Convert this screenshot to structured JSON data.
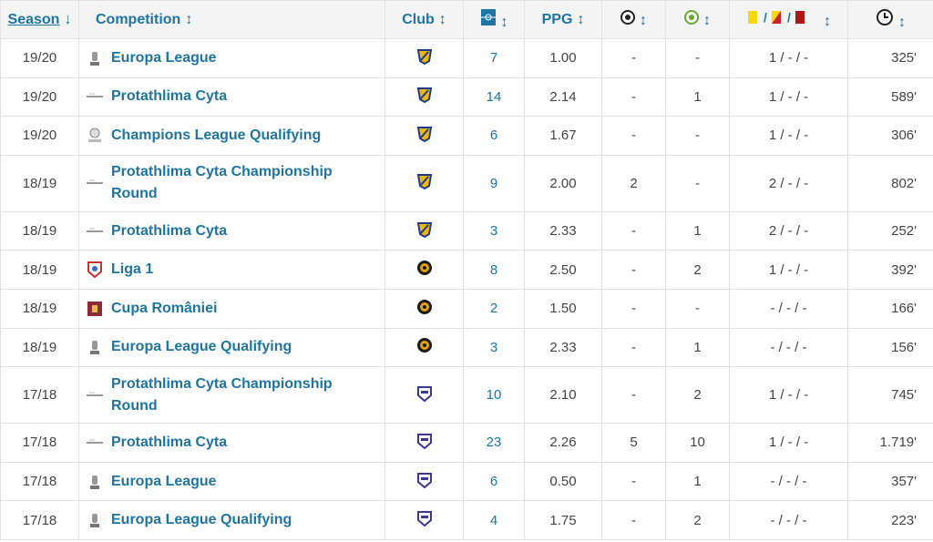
{
  "table": {
    "header": {
      "season": "Season",
      "competition": "Competition",
      "club": "Club",
      "ppg": "PPG"
    },
    "rows": [
      {
        "season": "19/20",
        "competition": "Europa League",
        "apps": "7",
        "ppg": "1.00",
        "goals": "-",
        "assists": "-",
        "cards": "1 / - / -",
        "minutes": "325'"
      },
      {
        "season": "19/20",
        "competition": "Protathlima Cyta",
        "apps": "14",
        "ppg": "2.14",
        "goals": "-",
        "assists": "1",
        "cards": "1 / - / -",
        "minutes": "589'"
      },
      {
        "season": "19/20",
        "competition": "Champions League Qualifying",
        "apps": "6",
        "ppg": "1.67",
        "goals": "-",
        "assists": "-",
        "cards": "1 / - / -",
        "minutes": "306'"
      },
      {
        "season": "18/19",
        "competition": "Protathlima Cyta Championship Round",
        "apps": "9",
        "ppg": "2.00",
        "goals": "2",
        "assists": "-",
        "cards": "2 / - / -",
        "minutes": "802'"
      },
      {
        "season": "18/19",
        "competition": "Protathlima Cyta",
        "apps": "3",
        "ppg": "2.33",
        "goals": "-",
        "assists": "1",
        "cards": "2 / - / -",
        "minutes": "252'"
      },
      {
        "season": "18/19",
        "competition": "Liga 1",
        "apps": "8",
        "ppg": "2.50",
        "goals": "-",
        "assists": "2",
        "cards": "1 / - / -",
        "minutes": "392'"
      },
      {
        "season": "18/19",
        "competition": "Cupa României",
        "apps": "2",
        "ppg": "1.50",
        "goals": "-",
        "assists": "-",
        "cards": "- / - / -",
        "minutes": "166'"
      },
      {
        "season": "18/19",
        "competition": "Europa League Qualifying",
        "apps": "3",
        "ppg": "2.33",
        "goals": "-",
        "assists": "1",
        "cards": "- / - / -",
        "minutes": "156'"
      },
      {
        "season": "17/18",
        "competition": "Protathlima Cyta Championship Round",
        "apps": "10",
        "ppg": "2.10",
        "goals": "-",
        "assists": "2",
        "cards": "1 / - / -",
        "minutes": "745'"
      },
      {
        "season": "17/18",
        "competition": "Protathlima Cyta",
        "apps": "23",
        "ppg": "2.26",
        "goals": "5",
        "assists": "10",
        "cards": "1 / - / -",
        "minutes": "1.719'"
      },
      {
        "season": "17/18",
        "competition": "Europa League",
        "apps": "6",
        "ppg": "0.50",
        "goals": "-",
        "assists": "1",
        "cards": "- / - / -",
        "minutes": "357'"
      },
      {
        "season": "17/18",
        "competition": "Europa League Qualifying",
        "apps": "4",
        "ppg": "1.75",
        "goals": "-",
        "assists": "2",
        "cards": "- / - / -",
        "minutes": "223'"
      }
    ]
  }
}
